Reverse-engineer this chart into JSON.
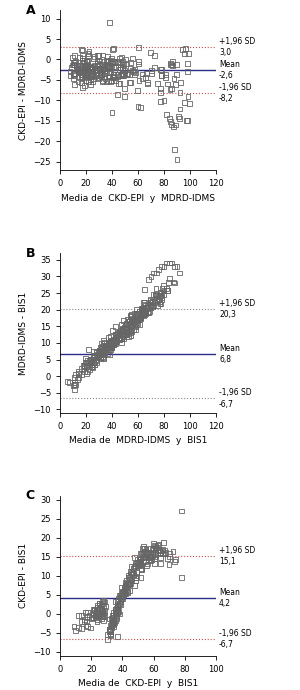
{
  "panels": [
    {
      "label": "A",
      "ylabel": "CKD-EPI - MDRD-IDMS",
      "xlabel": "Media de  CKD-EPI  y  MDRD-IDMS",
      "mean": -2.6,
      "upper_loa": 3.0,
      "lower_loa": -8.2,
      "mean_color": "#2b2b8a",
      "loa_color": "#c0504d",
      "ylim": [
        -27,
        12
      ],
      "xlim": [
        0,
        120
      ],
      "yticks": [
        -25,
        -20,
        -15,
        -10,
        -5,
        0,
        5,
        10
      ],
      "xticks": [
        0,
        20,
        40,
        60,
        80,
        100,
        120
      ],
      "upper_label": "+1,96 SD\n3,0",
      "lower_label": "-1,96 SD\n-8,2",
      "mean_label": "Mean\n-2,6",
      "seed": 42
    },
    {
      "label": "B",
      "ylabel": "MDRD-IDMS - BIS1",
      "xlabel": "Media de  MDRD-IDMS  y  BIS1",
      "mean": 6.8,
      "upper_loa": 20.3,
      "lower_loa": -6.7,
      "mean_color": "#2b2b8a",
      "loa_color": "#888888",
      "ylim": [
        -11,
        37
      ],
      "xlim": [
        0,
        120
      ],
      "yticks": [
        -10,
        -5,
        0,
        5,
        10,
        15,
        20,
        25,
        30,
        35
      ],
      "xticks": [
        0,
        20,
        40,
        60,
        80,
        100,
        120
      ],
      "upper_label": "+1,96 SD\n20,3",
      "lower_label": "-1,96 SD\n-6,7",
      "mean_label": "Mean\n6,8",
      "seed": 123
    },
    {
      "label": "C",
      "ylabel": "CKD-EPI - BIS1",
      "xlabel": "Media de  CKD-EPI  y  BIS1",
      "mean": 4.2,
      "upper_loa": 15.1,
      "lower_loa": -6.7,
      "mean_color": "#2b2b8a",
      "loa_color": "#c0504d",
      "ylim": [
        -11,
        31
      ],
      "xlim": [
        0,
        100
      ],
      "yticks": [
        -10,
        -5,
        0,
        5,
        10,
        15,
        20,
        25,
        30
      ],
      "xticks": [
        0,
        20,
        40,
        60,
        80,
        100
      ],
      "upper_label": "+1,96 SD\n15,1",
      "lower_label": "-1,96 SD\n-6,7",
      "mean_label": "Mean\n4,2",
      "seed": 77
    }
  ],
  "fig_width": 3.0,
  "fig_height": 6.9,
  "dpi": 100,
  "marker_size": 3.5,
  "marker_color": "none",
  "marker_edge_color": "#666666",
  "marker_edge_width": 0.6,
  "annotation_fontsize": 5.5,
  "axis_label_fontsize": 6.5,
  "tick_fontsize": 6,
  "panel_label_fontsize": 9
}
